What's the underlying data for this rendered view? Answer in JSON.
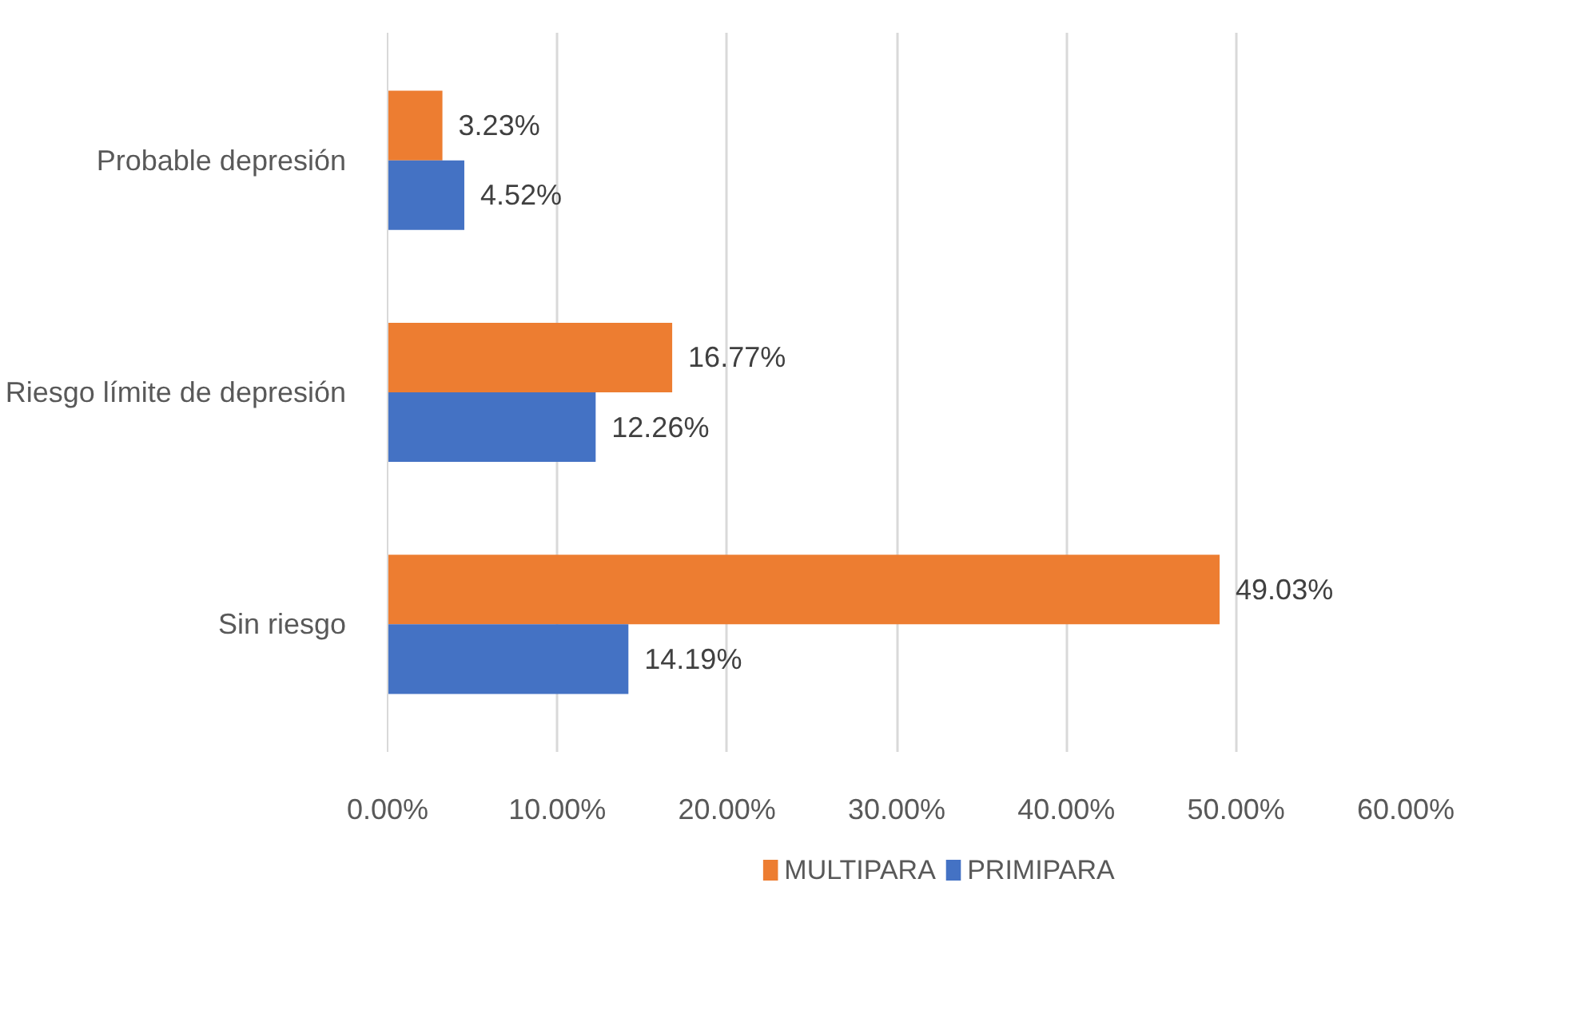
{
  "chart_data": {
    "type": "bar",
    "orientation": "horizontal",
    "categories": [
      "Probable depresión",
      "Riesgo límite de depresión",
      "Sin riesgo"
    ],
    "series": [
      {
        "name": "MULTIPARA",
        "color": "#ed7d31",
        "values": [
          3.23,
          16.77,
          49.03
        ],
        "value_labels": [
          "3.23%",
          "16.77%",
          "49.03%"
        ]
      },
      {
        "name": "PRIMIPARA",
        "color": "#4472c4",
        "values": [
          4.52,
          12.26,
          14.19
        ],
        "value_labels": [
          "4.52%",
          "12.26%",
          "14.19%"
        ]
      }
    ],
    "xlim": [
      0,
      60
    ],
    "xticks": [
      {
        "value": 0,
        "label": "0.00%"
      },
      {
        "value": 10,
        "label": "10.00%"
      },
      {
        "value": 20,
        "label": "20.00%"
      },
      {
        "value": 30,
        "label": "30.00%"
      },
      {
        "value": 40,
        "label": "40.00%"
      },
      {
        "value": 50,
        "label": "50.00%"
      },
      {
        "value": 60,
        "label": "60.00%"
      }
    ],
    "grid": "x",
    "legend": "bottom"
  }
}
